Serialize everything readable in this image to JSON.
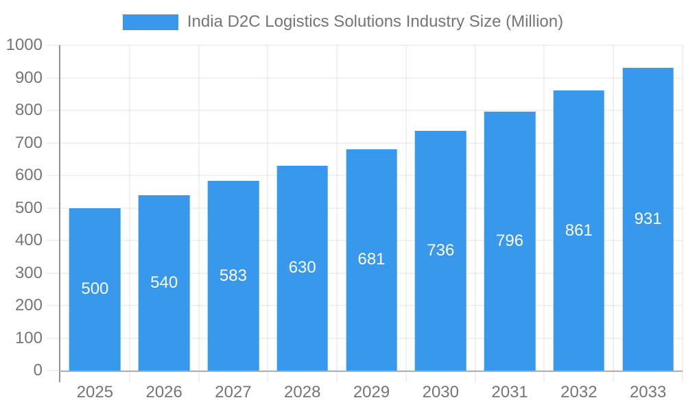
{
  "chart_data": {
    "type": "bar",
    "title": "India D2C Logistics Solutions Industry Size (Million)",
    "categories": [
      "2025",
      "2026",
      "2027",
      "2028",
      "2029",
      "2030",
      "2031",
      "2032",
      "2033"
    ],
    "values": [
      500,
      540,
      583,
      630,
      681,
      736,
      796,
      861,
      931
    ],
    "xlabel": "",
    "ylabel": "",
    "ylim": [
      0,
      1000
    ],
    "y_ticks": [
      0,
      100,
      200,
      300,
      400,
      500,
      600,
      700,
      800,
      900,
      1000
    ],
    "bar_labels_visible": true,
    "grid": true,
    "legend_position": "top",
    "colors": {
      "bar": "#3798EC",
      "bar_label": "#FFFFFF",
      "axis_text": "#757575",
      "grid_line": "#E0E0E0",
      "axis_line_y": "#909090",
      "axis_line_x": "#B0B0B0"
    }
  }
}
